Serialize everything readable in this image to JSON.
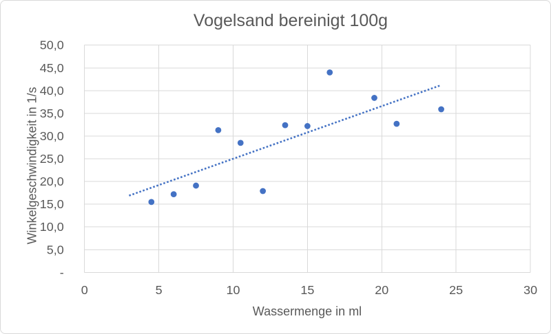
{
  "window": {
    "background": "#ffffff",
    "border_color": "#d9d9d9"
  },
  "chart_data": {
    "type": "scatter",
    "title": "Vogelsand bereinigt 100g",
    "xlabel": "Wassermenge in ml",
    "ylabel": "Winkelgeschwindigkeit in 1/s",
    "xlim": [
      0,
      30
    ],
    "ylim": [
      0,
      50
    ],
    "x_ticks": [
      0,
      5,
      10,
      15,
      20,
      25,
      30
    ],
    "x_tick_labels": [
      "0",
      "5",
      "10",
      "15",
      "20",
      "25",
      "30"
    ],
    "y_ticks": [
      0,
      5,
      10,
      15,
      20,
      25,
      30,
      35,
      40,
      45,
      50
    ],
    "y_tick_labels": [
      "-",
      "5,0",
      "10,0",
      "15,0",
      "20,0",
      "25,0",
      "30,0",
      "35,0",
      "40,0",
      "45,0",
      "50,0"
    ],
    "grid": true,
    "legend": "none",
    "colors": {
      "marker": "#4472c4",
      "trendline": "#4472c4",
      "grid": "#d9d9d9",
      "text": "#595959"
    },
    "series": [
      {
        "points": [
          [
            4.5,
            15.5
          ],
          [
            6.0,
            17.2
          ],
          [
            7.5,
            19.1
          ],
          [
            9.0,
            31.3
          ],
          [
            10.5,
            28.5
          ],
          [
            12.0,
            17.9
          ],
          [
            13.5,
            32.4
          ],
          [
            15.0,
            32.2
          ],
          [
            16.5,
            44.0
          ],
          [
            19.5,
            38.4
          ],
          [
            21.0,
            32.7
          ],
          [
            24.0,
            35.9
          ]
        ]
      }
    ],
    "trendline": {
      "style": "square-dot",
      "x1": 3.0,
      "y1": 16.9,
      "x2": 23.9,
      "y2": 41.1
    }
  }
}
